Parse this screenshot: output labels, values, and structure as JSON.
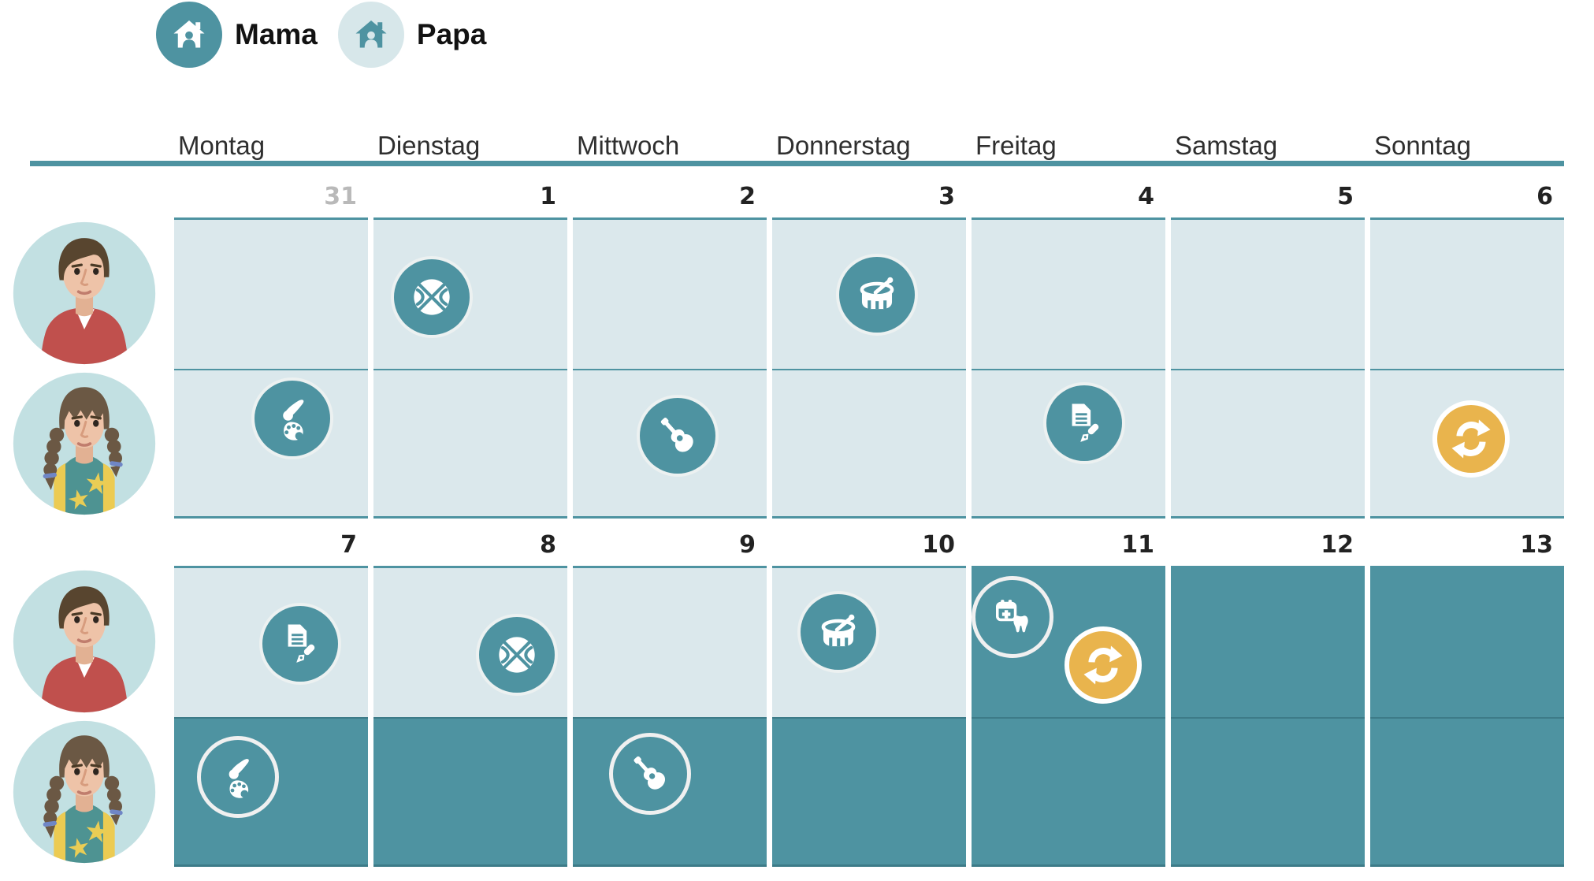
{
  "legend": {
    "items": [
      {
        "id": "mama",
        "label": "Mama",
        "icon": "home-person-icon",
        "style": "filled"
      },
      {
        "id": "papa",
        "label": "Papa",
        "icon": "home-person-icon",
        "style": "light"
      }
    ]
  },
  "days": [
    "Montag",
    "Dienstag",
    "Mittwoch",
    "Donnerstag",
    "Freitag",
    "Samstag",
    "Sonntag"
  ],
  "colors": {
    "teal": "#4e93a1",
    "light_cell": "#dbe8ec",
    "yellow": "#e9b44d",
    "avatar_background": "#c2e0e2",
    "muted_date": "#b9b9b9"
  },
  "members": [
    {
      "id": "boy",
      "avatar": "boy-avatar"
    },
    {
      "id": "girl",
      "avatar": "girl-avatar"
    }
  ],
  "weeks": [
    {
      "dates": [
        {
          "label": "31",
          "muted": true
        },
        {
          "label": "1"
        },
        {
          "label": "2"
        },
        {
          "label": "3"
        },
        {
          "label": "4"
        },
        {
          "label": "5"
        },
        {
          "label": "6"
        }
      ],
      "rows": [
        {
          "member": "boy",
          "cells": [
            {
              "shade": "light",
              "events": []
            },
            {
              "shade": "light",
              "events": [
                {
                  "icon": "basketball",
                  "variant": "teal",
                  "x": 30,
                  "y": 52
                }
              ]
            },
            {
              "shade": "light",
              "events": []
            },
            {
              "shade": "light",
              "events": [
                {
                  "icon": "drum",
                  "variant": "teal",
                  "x": 54,
                  "y": 50
                }
              ]
            },
            {
              "shade": "light",
              "events": []
            },
            {
              "shade": "light",
              "events": []
            },
            {
              "shade": "light",
              "events": []
            }
          ]
        },
        {
          "member": "girl",
          "cells": [
            {
              "shade": "light",
              "events": [
                {
                  "icon": "paint",
                  "variant": "teal",
                  "x": 61,
                  "y": 33
                }
              ]
            },
            {
              "shade": "light",
              "events": []
            },
            {
              "shade": "light",
              "events": [
                {
                  "icon": "guitar",
                  "variant": "teal",
                  "x": 54,
                  "y": 45
                }
              ]
            },
            {
              "shade": "light",
              "events": []
            },
            {
              "shade": "light",
              "events": [
                {
                  "icon": "homework",
                  "variant": "teal",
                  "x": 58,
                  "y": 36
                }
              ]
            },
            {
              "shade": "light",
              "events": []
            },
            {
              "shade": "light",
              "events": [
                {
                  "icon": "sync",
                  "variant": "yellow",
                  "x": 52,
                  "y": 47
                }
              ]
            }
          ]
        }
      ]
    },
    {
      "dates": [
        {
          "label": "7"
        },
        {
          "label": "8"
        },
        {
          "label": "9"
        },
        {
          "label": "10"
        },
        {
          "label": "11"
        },
        {
          "label": "12"
        },
        {
          "label": "13"
        }
      ],
      "rows": [
        {
          "member": "boy",
          "cells": [
            {
              "shade": "light",
              "events": [
                {
                  "icon": "homework",
                  "variant": "teal",
                  "x": 65,
                  "y": 51
                }
              ]
            },
            {
              "shade": "light",
              "events": [
                {
                  "icon": "basketball",
                  "variant": "teal",
                  "x": 74,
                  "y": 58
                }
              ]
            },
            {
              "shade": "light",
              "events": []
            },
            {
              "shade": "light",
              "events": [
                {
                  "icon": "drum",
                  "variant": "teal",
                  "x": 34,
                  "y": 43
                }
              ]
            },
            {
              "shade": "dark",
              "events": [
                {
                  "icon": "dentist",
                  "variant": "outline",
                  "x": 21,
                  "y": 33
                },
                {
                  "icon": "sync",
                  "variant": "yellow",
                  "x": 68,
                  "y": 65
                }
              ]
            },
            {
              "shade": "dark",
              "events": []
            },
            {
              "shade": "dark",
              "events": []
            }
          ]
        },
        {
          "member": "girl",
          "cells": [
            {
              "shade": "dark",
              "events": [
                {
                  "icon": "paint",
                  "variant": "outline",
                  "x": 33,
                  "y": 40
                }
              ]
            },
            {
              "shade": "dark",
              "events": []
            },
            {
              "shade": "dark",
              "events": [
                {
                  "icon": "guitar",
                  "variant": "outline",
                  "x": 40,
                  "y": 38
                }
              ]
            },
            {
              "shade": "dark",
              "events": []
            },
            {
              "shade": "dark",
              "events": []
            },
            {
              "shade": "dark",
              "events": []
            },
            {
              "shade": "dark",
              "events": []
            }
          ]
        }
      ]
    }
  ]
}
